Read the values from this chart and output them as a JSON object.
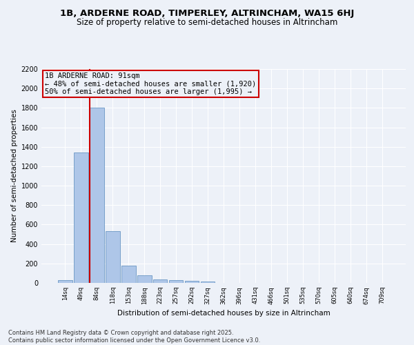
{
  "title_line1": "1B, ARDERNE ROAD, TIMPERLEY, ALTRINCHAM, WA15 6HJ",
  "title_line2": "Size of property relative to semi-detached houses in Altrincham",
  "xlabel": "Distribution of semi-detached houses by size in Altrincham",
  "ylabel": "Number of semi-detached properties",
  "bin_labels": [
    "14sq",
    "49sq",
    "84sq",
    "118sq",
    "153sq",
    "188sq",
    "223sq",
    "257sq",
    "292sq",
    "327sq",
    "362sq",
    "396sq",
    "431sq",
    "466sq",
    "501sq",
    "535sq",
    "570sq",
    "605sq",
    "640sq",
    "674sq",
    "709sq"
  ],
  "bar_values": [
    30,
    1340,
    1800,
    535,
    175,
    80,
    35,
    25,
    20,
    15,
    0,
    0,
    0,
    0,
    0,
    0,
    0,
    0,
    0,
    0,
    0
  ],
  "bar_color": "#aec6e8",
  "bar_edge_color": "#5588bb",
  "vline_x_index": 2,
  "vline_color": "#cc0000",
  "annotation_title": "1B ARDERNE ROAD: 91sqm",
  "annotation_line1": "← 48% of semi-detached houses are smaller (1,920)",
  "annotation_line2": "50% of semi-detached houses are larger (1,995) →",
  "annotation_box_color": "#cc0000",
  "ylim": [
    0,
    2200
  ],
  "yticks": [
    0,
    200,
    400,
    600,
    800,
    1000,
    1200,
    1400,
    1600,
    1800,
    2000,
    2200
  ],
  "footer_line1": "Contains HM Land Registry data © Crown copyright and database right 2025.",
  "footer_line2": "Contains public sector information licensed under the Open Government Licence v3.0.",
  "bg_color": "#edf1f8",
  "grid_color": "#ffffff",
  "title_fontsize": 9.5,
  "subtitle_fontsize": 8.5,
  "annotation_fontsize": 7.5,
  "footer_fontsize": 6.0,
  "ylabel_fontsize": 7.5,
  "xlabel_fontsize": 7.5
}
